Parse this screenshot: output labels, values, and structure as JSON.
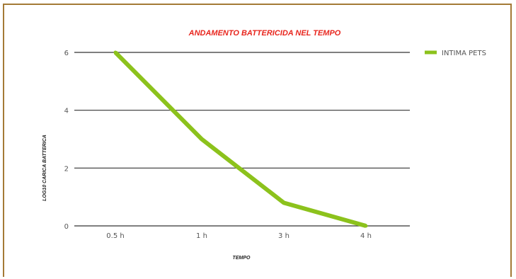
{
  "chart_data": {
    "type": "line",
    "title": "ANDAMENTO BATTERICIDA NEL TEMPO",
    "xlabel": "TEMPO",
    "ylabel": "LOG10 CARICA BATTERICA",
    "categories": [
      "0.5 h",
      "1 h",
      "3 h",
      "4 h"
    ],
    "series": [
      {
        "name": "INTIMA PETS",
        "values": [
          6,
          3,
          0.8,
          0
        ],
        "color": "#8cc21c"
      }
    ],
    "ylim": [
      0,
      6
    ],
    "yticks": [
      0,
      2,
      4,
      6
    ],
    "grid": true,
    "legend_position": "top-right",
    "colors": {
      "title": "#e8261e",
      "series": "#8cc21c",
      "frame": "#a47a36",
      "grid": "#333333"
    }
  }
}
